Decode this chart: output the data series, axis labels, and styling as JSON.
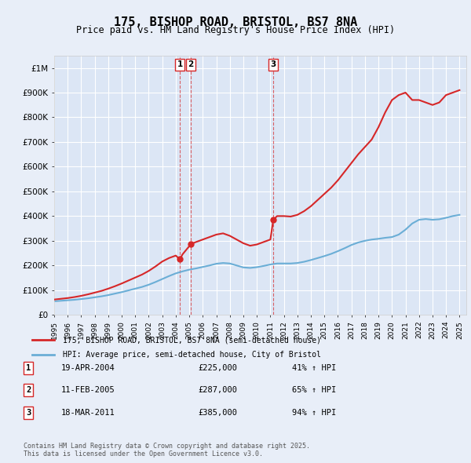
{
  "title": "175, BISHOP ROAD, BRISTOL, BS7 8NA",
  "subtitle": "Price paid vs. HM Land Registry's House Price Index (HPI)",
  "background_color": "#e8eef8",
  "plot_bg_color": "#dce6f5",
  "ylabel": "",
  "ylim": [
    0,
    1050000
  ],
  "yticks": [
    0,
    100000,
    200000,
    300000,
    400000,
    500000,
    600000,
    700000,
    800000,
    900000,
    1000000
  ],
  "ytick_labels": [
    "£0",
    "£100K",
    "£200K",
    "£300K",
    "£400K",
    "£500K",
    "£600K",
    "£700K",
    "£800K",
    "£900K",
    "£1M"
  ],
  "transactions": [
    {
      "label": "1",
      "date": "19-APR-2004",
      "date_x": 2004.3,
      "price": 225000,
      "pct": "41%",
      "dir": "↑"
    },
    {
      "label": "2",
      "date": "11-FEB-2005",
      "date_x": 2005.12,
      "price": 287000,
      "pct": "65%",
      "dir": "↑"
    },
    {
      "label": "3",
      "date": "18-MAR-2011",
      "date_x": 2011.22,
      "price": 385000,
      "pct": "94%",
      "dir": "↑"
    }
  ],
  "legend_label_red": "175, BISHOP ROAD, BRISTOL, BS7 8NA (semi-detached house)",
  "legend_label_blue": "HPI: Average price, semi-detached house, City of Bristol",
  "footer": "Contains HM Land Registry data © Crown copyright and database right 2025.\nThis data is licensed under the Open Government Licence v3.0.",
  "hpi_x": [
    1995,
    1995.5,
    1996,
    1996.5,
    1997,
    1997.5,
    1998,
    1998.5,
    1999,
    1999.5,
    2000,
    2000.5,
    2001,
    2001.5,
    2002,
    2002.5,
    2003,
    2003.5,
    2004,
    2004.5,
    2005,
    2005.5,
    2006,
    2006.5,
    2007,
    2007.5,
    2008,
    2008.5,
    2009,
    2009.5,
    2010,
    2010.5,
    2011,
    2011.5,
    2012,
    2012.5,
    2013,
    2013.5,
    2014,
    2014.5,
    2015,
    2015.5,
    2016,
    2016.5,
    2017,
    2017.5,
    2018,
    2018.5,
    2019,
    2019.5,
    2020,
    2020.5,
    2021,
    2021.5,
    2022,
    2022.5,
    2023,
    2023.5,
    2024,
    2024.5,
    2025
  ],
  "hpi_y": [
    55000,
    57000,
    59000,
    61000,
    64000,
    67000,
    71000,
    75000,
    80000,
    86000,
    92000,
    99000,
    106000,
    113000,
    122000,
    133000,
    145000,
    157000,
    168000,
    176000,
    183000,
    188000,
    194000,
    200000,
    207000,
    210000,
    208000,
    200000,
    192000,
    190000,
    193000,
    198000,
    204000,
    208000,
    208000,
    208000,
    210000,
    215000,
    222000,
    230000,
    238000,
    247000,
    258000,
    270000,
    283000,
    293000,
    300000,
    305000,
    308000,
    312000,
    315000,
    325000,
    345000,
    370000,
    385000,
    388000,
    385000,
    387000,
    393000,
    400000,
    405000
  ],
  "red_x": [
    1995,
    1995.5,
    1996,
    1996.5,
    1997,
    1997.5,
    1998,
    1998.5,
    1999,
    1999.5,
    2000,
    2000.5,
    2001,
    2001.5,
    2002,
    2002.5,
    2003,
    2003.5,
    2004,
    2004.3,
    2004.5,
    2004.8,
    2005,
    2005.12,
    2005.5,
    2006,
    2006.5,
    2007,
    2007.5,
    2008,
    2008.5,
    2009,
    2009.5,
    2010,
    2010.5,
    2011,
    2011.22,
    2011.5,
    2012,
    2012.5,
    2013,
    2013.5,
    2014,
    2014.5,
    2015,
    2015.5,
    2016,
    2016.5,
    2017,
    2017.5,
    2018,
    2018.5,
    2019,
    2019.5,
    2020,
    2020.5,
    2021,
    2021.5,
    2022,
    2022.5,
    2023,
    2023.5,
    2024,
    2024.5,
    2025
  ],
  "red_y": [
    62000,
    65000,
    68000,
    72000,
    77000,
    83000,
    90000,
    97000,
    106000,
    116000,
    127000,
    139000,
    151000,
    163000,
    178000,
    196000,
    216000,
    230000,
    240000,
    225000,
    245000,
    265000,
    278000,
    287000,
    295000,
    305000,
    315000,
    325000,
    330000,
    320000,
    305000,
    290000,
    280000,
    285000,
    295000,
    305000,
    385000,
    400000,
    400000,
    398000,
    405000,
    420000,
    440000,
    465000,
    490000,
    515000,
    545000,
    580000,
    615000,
    650000,
    680000,
    710000,
    760000,
    820000,
    870000,
    890000,
    900000,
    870000,
    870000,
    860000,
    850000,
    860000,
    890000,
    900000,
    910000
  ],
  "xmin": 1995,
  "xmax": 2025.5
}
